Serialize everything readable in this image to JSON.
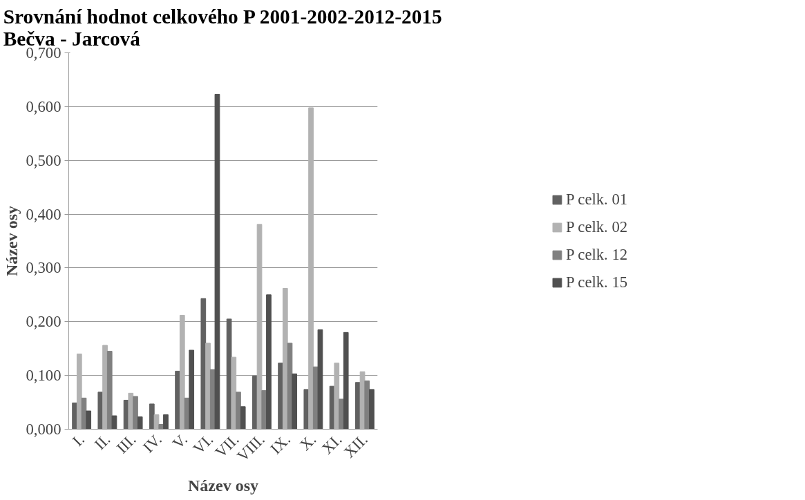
{
  "chart_data": {
    "type": "bar",
    "title": "Srovnání hodnot celkového P 2001-2002-2012-2015\nBečva - Jarcová",
    "xlabel": "Název osy",
    "ylabel": "Název osy",
    "categories": [
      "I.",
      "II.",
      "III.",
      "IV.",
      "V.",
      "VI.",
      "VII.",
      "VIII.",
      "IX.",
      "X.",
      "XI.",
      "XII."
    ],
    "series": [
      {
        "name": "P celk. 01",
        "color": "#616161",
        "values": [
          0.049,
          0.069,
          0.054,
          0.047,
          0.108,
          0.243,
          0.205,
          0.099,
          0.123,
          0.074,
          0.08,
          0.087
        ]
      },
      {
        "name": "P celk. 02",
        "color": "#b2b2b2",
        "values": [
          0.14,
          0.156,
          0.067,
          0.027,
          0.212,
          0.16,
          0.134,
          0.381,
          0.262,
          0.598,
          0.123,
          0.107
        ]
      },
      {
        "name": "P celk. 12",
        "color": "#808080",
        "values": [
          0.058,
          0.145,
          0.061,
          0.009,
          0.058,
          0.111,
          0.069,
          0.072,
          0.16,
          0.116,
          0.056,
          0.09
        ]
      },
      {
        "name": "P celk. 15",
        "color": "#505050",
        "values": [
          0.034,
          0.025,
          0.023,
          0.027,
          0.147,
          0.623,
          0.042,
          0.25,
          0.103,
          0.185,
          0.18,
          0.074
        ]
      }
    ],
    "ylim": [
      0,
      0.7
    ],
    "yticks": [
      {
        "value": 0,
        "label": "0,000"
      },
      {
        "value": 0.1,
        "label": "0,100"
      },
      {
        "value": 0.2,
        "label": "0,200"
      },
      {
        "value": 0.3,
        "label": "0,300"
      },
      {
        "value": 0.4,
        "label": "0,400"
      },
      {
        "value": 0.5,
        "label": "0,500"
      },
      {
        "value": 0.6,
        "label": "0,600"
      },
      {
        "value": 0.7,
        "label": "0,700"
      }
    ],
    "grid": "y",
    "legend": "right"
  }
}
